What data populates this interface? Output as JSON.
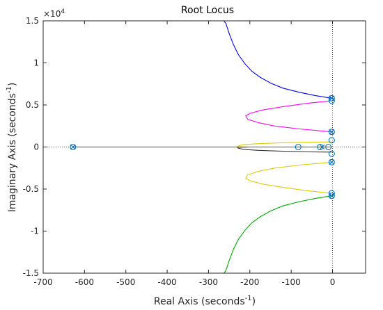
{
  "chart_data": {
    "type": "line",
    "title": "Root Locus",
    "xlabel": "Real Axis (seconds",
    "xlabel_sup": "-1",
    "xlabel_end": ")",
    "ylabel": "Imaginary Axis (seconds",
    "ylabel_sup": "-1",
    "ylabel_end": ")",
    "y_exponent_prefix": "×10",
    "y_exponent_power": "4",
    "xlim": [
      -700,
      80
    ],
    "ylim": [
      -15000,
      15000
    ],
    "x_ticks": [
      -700,
      -600,
      -500,
      -400,
      -300,
      -200,
      -100,
      0
    ],
    "x_tick_labels": [
      "-700",
      "-600",
      "-500",
      "-400",
      "-300",
      "-200",
      "-100",
      "0"
    ],
    "y_ticks": [
      -15000,
      -10000,
      -5000,
      0,
      5000,
      10000,
      15000
    ],
    "y_tick_labels": [
      "-1.5",
      "-1",
      "-0.5",
      "0",
      "0.5",
      "1",
      "1.5"
    ],
    "grid": false,
    "reference_lines": {
      "x_zero_dotted": true,
      "y_zero_dotted": true
    },
    "series": [
      {
        "color": "#0000ff",
        "points": [
          [
            -2,
            5800
          ],
          [
            -40,
            6100
          ],
          [
            -80,
            6500
          ],
          [
            -120,
            7000
          ],
          [
            -150,
            7600
          ],
          [
            -175,
            8300
          ],
          [
            -195,
            9000
          ],
          [
            -212,
            9900
          ],
          [
            -228,
            11000
          ],
          [
            -240,
            12200
          ],
          [
            -250,
            13500
          ],
          [
            -258,
            14700
          ],
          [
            -263,
            15000
          ]
        ]
      },
      {
        "color": "#ff00ff",
        "points": [
          [
            -2,
            5500
          ],
          [
            -60,
            5200
          ],
          [
            -120,
            4800
          ],
          [
            -170,
            4400
          ],
          [
            -200,
            4000
          ],
          [
            -210,
            3700
          ],
          [
            -205,
            3300
          ],
          [
            -180,
            2900
          ],
          [
            -140,
            2500
          ],
          [
            -80,
            2150
          ],
          [
            -2,
            1800
          ]
        ]
      },
      {
        "color": "#ddcc00",
        "points": [
          [
            -2,
            600
          ],
          [
            -60,
            580
          ],
          [
            -120,
            500
          ],
          [
            -180,
            400
          ],
          [
            -215,
            280
          ],
          [
            -228,
            150
          ],
          [
            -230,
            30
          ],
          [
            -200,
            0
          ],
          [
            -180,
            0
          ]
        ]
      },
      {
        "color": "#333333",
        "points": [
          [
            -2,
            -600
          ],
          [
            -60,
            -580
          ],
          [
            -120,
            -500
          ],
          [
            -180,
            -400
          ],
          [
            -215,
            -280
          ],
          [
            -228,
            -150
          ],
          [
            -230,
            -30
          ],
          [
            -200,
            0
          ],
          [
            -180,
            0
          ]
        ]
      },
      {
        "color": "#ddcc00",
        "points": [
          [
            -2,
            -1800
          ],
          [
            -80,
            -2150
          ],
          [
            -140,
            -2500
          ],
          [
            -180,
            -2900
          ],
          [
            -205,
            -3300
          ],
          [
            -210,
            -3700
          ],
          [
            -200,
            -4000
          ],
          [
            -170,
            -4400
          ],
          [
            -120,
            -4800
          ],
          [
            -60,
            -5200
          ],
          [
            -2,
            -5500
          ]
        ]
      },
      {
        "color": "#00aa00",
        "points": [
          [
            -2,
            -5800
          ],
          [
            -40,
            -6100
          ],
          [
            -80,
            -6500
          ],
          [
            -120,
            -7000
          ],
          [
            -150,
            -7600
          ],
          [
            -175,
            -8300
          ],
          [
            -195,
            -9000
          ],
          [
            -212,
            -9900
          ],
          [
            -228,
            -11000
          ],
          [
            -240,
            -12200
          ],
          [
            -250,
            -13500
          ],
          [
            -258,
            -14700
          ],
          [
            -263,
            -15000
          ]
        ]
      },
      {
        "color": "#ff0000",
        "points": [
          [
            -628,
            0
          ],
          [
            -230,
            0
          ],
          [
            -180,
            0
          ],
          [
            -83,
            0
          ],
          [
            -30,
            0
          ],
          [
            -2,
            0
          ]
        ]
      }
    ],
    "poles": [
      [
        -628,
        0
      ],
      [
        -2,
        5800
      ],
      [
        -2,
        1800
      ],
      [
        -2,
        -1800
      ],
      [
        -2,
        -5800
      ],
      [
        -25,
        0
      ]
    ],
    "zeros": [
      [
        -628,
        0
      ],
      [
        -83,
        0
      ],
      [
        -30,
        0
      ],
      [
        -10,
        0
      ],
      [
        -2,
        5500
      ],
      [
        -2,
        1800
      ],
      [
        -2,
        800
      ],
      [
        -2,
        -800
      ],
      [
        -2,
        -1800
      ],
      [
        -2,
        -5500
      ],
      [
        -2,
        -5800
      ],
      [
        -2,
        5800
      ]
    ],
    "marker_color": "#0072bd"
  }
}
